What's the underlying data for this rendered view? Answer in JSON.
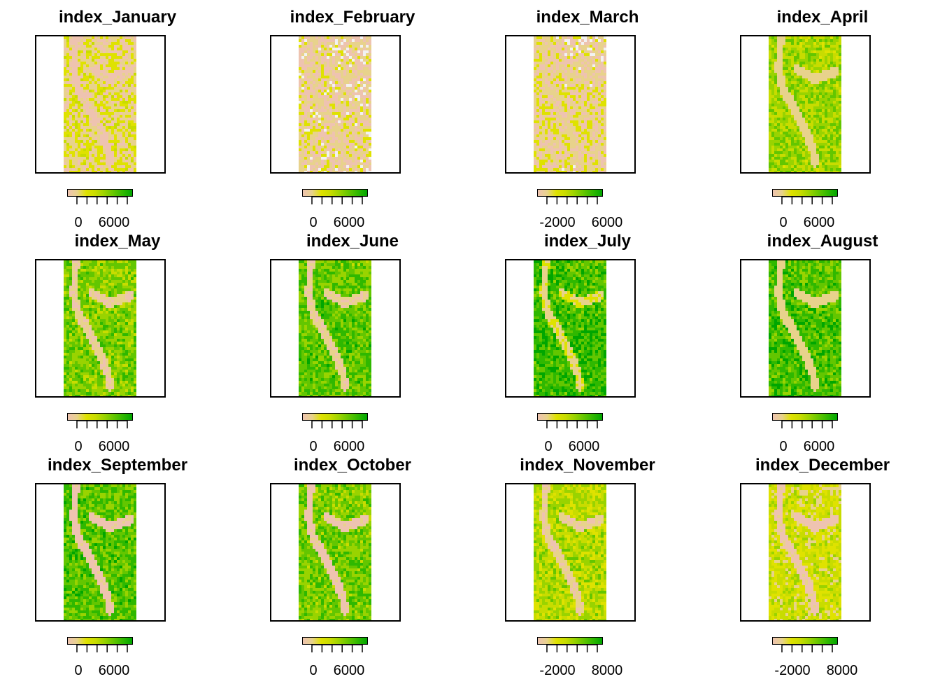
{
  "chart_data": [
    {
      "type": "heatmap",
      "title": "index_January",
      "legend_ticks": [
        "0",
        "6000"
      ],
      "land_cover": 0.3,
      "river_cover": 0.85
    },
    {
      "type": "heatmap",
      "title": "index_February",
      "legend_ticks": [
        "0",
        "6000"
      ],
      "land_cover": 0.22,
      "river_cover": 0.8
    },
    {
      "type": "heatmap",
      "title": "index_March",
      "legend_ticks": [
        "-2000",
        "6000"
      ],
      "land_cover": 0.25,
      "river_cover": 0.8
    },
    {
      "type": "heatmap",
      "title": "index_April",
      "legend_ticks": [
        "0",
        "6000"
      ],
      "land_cover": 0.62,
      "river_cover": 0.75
    },
    {
      "type": "heatmap",
      "title": "index_May",
      "legend_ticks": [
        "0",
        "6000"
      ],
      "land_cover": 0.7,
      "river_cover": 0.8
    },
    {
      "type": "heatmap",
      "title": "index_June",
      "legend_ticks": [
        "0",
        "6000"
      ],
      "land_cover": 0.78,
      "river_cover": 0.8
    },
    {
      "type": "heatmap",
      "title": "index_July",
      "legend_ticks": [
        "0",
        "6000"
      ],
      "land_cover": 0.85,
      "river_cover": 0.7
    },
    {
      "type": "heatmap",
      "title": "index_August",
      "legend_ticks": [
        "0",
        "6000"
      ],
      "land_cover": 0.82,
      "river_cover": 0.75
    },
    {
      "type": "heatmap",
      "title": "index_September",
      "legend_ticks": [
        "0",
        "6000"
      ],
      "land_cover": 0.8,
      "river_cover": 0.85
    },
    {
      "type": "heatmap",
      "title": "index_October",
      "legend_ticks": [
        "0",
        "6000"
      ],
      "land_cover": 0.72,
      "river_cover": 0.85
    },
    {
      "type": "heatmap",
      "title": "index_November",
      "legend_ticks": [
        "-2000",
        "8000"
      ],
      "land_cover": 0.55,
      "river_cover": 0.8
    },
    {
      "type": "heatmap",
      "title": "index_December",
      "legend_ticks": [
        "-2000",
        "8000"
      ],
      "land_cover": 0.45,
      "river_cover": 0.85
    }
  ],
  "colors": {
    "palette": [
      "#f2f2f2",
      "#eec3b0",
      "#e8d28c",
      "#dfe200",
      "#c8dc00",
      "#99d300",
      "#63c600",
      "#2fb800",
      "#00a600"
    ],
    "frame": "#000000",
    "na": "#ffffff"
  }
}
